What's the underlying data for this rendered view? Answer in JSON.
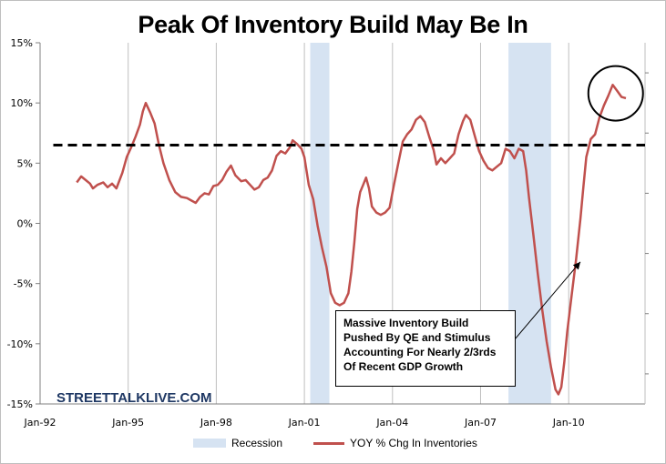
{
  "chart_data": {
    "type": "line",
    "title": "Peak Of Inventory Build May Be In",
    "y_ticks": [
      "15%",
      "10%",
      "5%",
      "0%",
      "-5%",
      "-10%",
      "-15%"
    ],
    "x_ticks": [
      "Jan-92",
      "Jan-95",
      "Jan-98",
      "Jan-01",
      "Jan-04",
      "Jan-07",
      "Jan-10"
    ],
    "ylim": [
      -15,
      15
    ],
    "xlim": [
      1992.0,
      2012.6
    ],
    "grid": "vertical",
    "legend_position": "bottom",
    "legend": {
      "recession_label": "Recession",
      "series_label": "YOY % Chg In Inventories"
    },
    "recessions": [
      [
        2001.2,
        2001.85
      ],
      [
        2007.95,
        2009.4
      ]
    ],
    "reference_line": {
      "value": 6.5,
      "style": "dashed",
      "color": "#000000"
    },
    "highlight_circle": {
      "x": 2011.6,
      "y": 10.8
    },
    "annotation": {
      "lines": [
        "Massive Inventory Build",
        "Pushed By QE and Stimulus",
        "Accounting For Nearly 2/3rds",
        "Of Recent GDP Growth"
      ]
    },
    "watermark": "STREETTALKLIVE.COM",
    "series": [
      {
        "name": "YOY % Chg In Inventories",
        "color": "#c0504d",
        "points": [
          [
            1993.25,
            3.4
          ],
          [
            1993.4,
            3.9
          ],
          [
            1993.55,
            3.6
          ],
          [
            1993.7,
            3.3
          ],
          [
            1993.8,
            2.9
          ],
          [
            1993.95,
            3.2
          ],
          [
            1994.15,
            3.4
          ],
          [
            1994.3,
            3.0
          ],
          [
            1994.45,
            3.3
          ],
          [
            1994.6,
            2.9
          ],
          [
            1994.8,
            4.2
          ],
          [
            1994.95,
            5.5
          ],
          [
            1995.1,
            6.3
          ],
          [
            1995.25,
            7.2
          ],
          [
            1995.4,
            8.2
          ],
          [
            1995.5,
            9.3
          ],
          [
            1995.6,
            10.0
          ],
          [
            1995.75,
            9.2
          ],
          [
            1995.9,
            8.3
          ],
          [
            1996.05,
            6.5
          ],
          [
            1996.2,
            5.0
          ],
          [
            1996.4,
            3.6
          ],
          [
            1996.6,
            2.6
          ],
          [
            1996.8,
            2.2
          ],
          [
            1997.0,
            2.1
          ],
          [
            1997.15,
            1.9
          ],
          [
            1997.3,
            1.7
          ],
          [
            1997.45,
            2.2
          ],
          [
            1997.6,
            2.5
          ],
          [
            1997.75,
            2.4
          ],
          [
            1997.9,
            3.1
          ],
          [
            1998.05,
            3.2
          ],
          [
            1998.2,
            3.6
          ],
          [
            1998.35,
            4.3
          ],
          [
            1998.5,
            4.8
          ],
          [
            1998.65,
            4.0
          ],
          [
            1998.85,
            3.5
          ],
          [
            1999.0,
            3.6
          ],
          [
            1999.15,
            3.2
          ],
          [
            1999.3,
            2.8
          ],
          [
            1999.45,
            3.0
          ],
          [
            1999.6,
            3.6
          ],
          [
            1999.75,
            3.8
          ],
          [
            1999.9,
            4.4
          ],
          [
            2000.05,
            5.6
          ],
          [
            2000.2,
            6.0
          ],
          [
            2000.35,
            5.8
          ],
          [
            2000.5,
            6.3
          ],
          [
            2000.6,
            6.9
          ],
          [
            2000.75,
            6.6
          ],
          [
            2000.9,
            6.2
          ],
          [
            2001.0,
            5.5
          ],
          [
            2001.15,
            3.2
          ],
          [
            2001.3,
            2.0
          ],
          [
            2001.45,
            -0.2
          ],
          [
            2001.6,
            -2.0
          ],
          [
            2001.75,
            -3.6
          ],
          [
            2001.9,
            -5.8
          ],
          [
            2002.05,
            -6.6
          ],
          [
            2002.2,
            -6.8
          ],
          [
            2002.35,
            -6.6
          ],
          [
            2002.5,
            -5.8
          ],
          [
            2002.6,
            -4.0
          ],
          [
            2002.7,
            -1.6
          ],
          [
            2002.8,
            1.2
          ],
          [
            2002.9,
            2.6
          ],
          [
            2003.0,
            3.2
          ],
          [
            2003.1,
            3.8
          ],
          [
            2003.2,
            2.9
          ],
          [
            2003.3,
            1.4
          ],
          [
            2003.45,
            0.9
          ],
          [
            2003.6,
            0.7
          ],
          [
            2003.75,
            0.9
          ],
          [
            2003.9,
            1.3
          ],
          [
            2004.05,
            3.2
          ],
          [
            2004.2,
            5.0
          ],
          [
            2004.35,
            6.8
          ],
          [
            2004.5,
            7.4
          ],
          [
            2004.65,
            7.8
          ],
          [
            2004.8,
            8.6
          ],
          [
            2004.95,
            8.9
          ],
          [
            2005.1,
            8.4
          ],
          [
            2005.25,
            7.2
          ],
          [
            2005.4,
            6.1
          ],
          [
            2005.5,
            4.9
          ],
          [
            2005.65,
            5.4
          ],
          [
            2005.8,
            5.0
          ],
          [
            2005.95,
            5.4
          ],
          [
            2006.1,
            5.8
          ],
          [
            2006.25,
            7.4
          ],
          [
            2006.4,
            8.5
          ],
          [
            2006.5,
            9.0
          ],
          [
            2006.65,
            8.6
          ],
          [
            2006.8,
            7.3
          ],
          [
            2006.95,
            6.0
          ],
          [
            2007.1,
            5.2
          ],
          [
            2007.25,
            4.6
          ],
          [
            2007.4,
            4.4
          ],
          [
            2007.55,
            4.7
          ],
          [
            2007.7,
            5.0
          ],
          [
            2007.85,
            6.2
          ],
          [
            2008.0,
            6.0
          ],
          [
            2008.15,
            5.4
          ],
          [
            2008.3,
            6.2
          ],
          [
            2008.45,
            6.0
          ],
          [
            2008.55,
            4.4
          ],
          [
            2008.65,
            2.1
          ],
          [
            2008.8,
            -1.0
          ],
          [
            2008.95,
            -4.2
          ],
          [
            2009.1,
            -7.2
          ],
          [
            2009.25,
            -9.8
          ],
          [
            2009.4,
            -12.0
          ],
          [
            2009.55,
            -13.8
          ],
          [
            2009.65,
            -14.2
          ],
          [
            2009.75,
            -13.6
          ],
          [
            2009.85,
            -11.5
          ],
          [
            2009.95,
            -9.0
          ],
          [
            2010.1,
            -6.0
          ],
          [
            2010.25,
            -3.0
          ],
          [
            2010.4,
            0.4
          ],
          [
            2010.5,
            3.0
          ],
          [
            2010.6,
            5.5
          ],
          [
            2010.75,
            7.0
          ],
          [
            2010.9,
            7.4
          ],
          [
            2011.05,
            8.8
          ],
          [
            2011.2,
            9.8
          ],
          [
            2011.35,
            10.6
          ],
          [
            2011.5,
            11.5
          ],
          [
            2011.65,
            11.0
          ],
          [
            2011.8,
            10.5
          ],
          [
            2011.95,
            10.4
          ]
        ]
      }
    ]
  }
}
